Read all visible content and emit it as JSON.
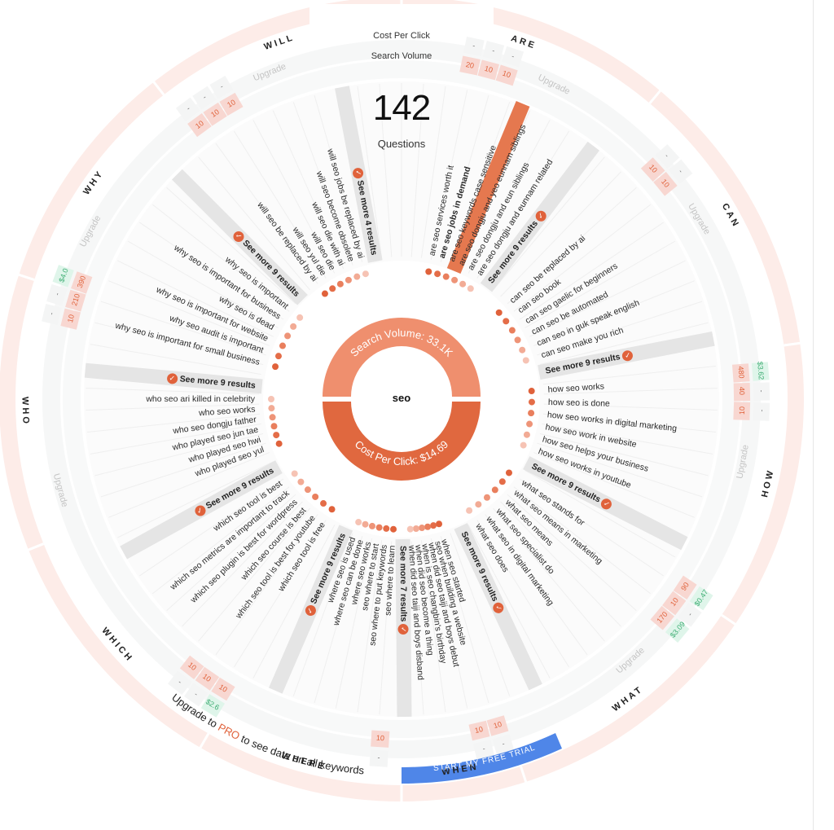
{
  "header": {
    "cost_per_click_label": "Cost Per Click",
    "search_volume_label": "Search Volume",
    "question_count": "142",
    "question_label": "Questions"
  },
  "center": {
    "keyword": "seo",
    "search_volume_label": "Search Volume: 33.1K",
    "cost_per_click_label": "Cost Per Click: $14.69",
    "colors": {
      "search_volume": "#ef8f6e",
      "cost_per_click": "#e0683f"
    }
  },
  "colors": {
    "accent": "#e0623b",
    "outer_ring": "#fdece8",
    "see_more_band": "#e5e5e5",
    "volume_cell": "#f8d7d1",
    "volume_text": "#e0623b",
    "cpc_cell": "#dff5ea",
    "cpc_text": "#3fae74",
    "cta": "#4f86e8",
    "highlight_bar": "#e5784f"
  },
  "categories": [
    {
      "name": "ARE",
      "questions": [
        "are seo services worth it",
        "are seo jobs in demand",
        "are seo keywords case sensitive",
        "are seo dongju and yeo eunnam siblings",
        "are seo dongju and eun siblings",
        "are seo dongju and eunnam related"
      ],
      "highlighted": "are seo jobs in demand",
      "see_more": "See more 9 results",
      "volumes": [
        "20",
        "10",
        "10"
      ],
      "cpcs": [
        "-",
        "-",
        "-"
      ],
      "upgrade_label": "Upgrade"
    },
    {
      "name": "CAN",
      "questions": [
        "can seo be replaced by ai",
        "can seo book",
        "can seo gaelic for beginners",
        "can seo be automated",
        "can seo in guk speak english",
        "can seo make you rich"
      ],
      "see_more": "See more 9 results",
      "volumes": [
        "10",
        "10"
      ],
      "cpcs": [
        "-",
        "-"
      ],
      "upgrade_label": "Upgrade"
    },
    {
      "name": "HOW",
      "questions": [
        "how seo works",
        "how seo is done",
        "how seo works in digital marketing",
        "how seo work in website",
        "how seo helps your business",
        "how seo works in youtube"
      ],
      "see_more": "See more 9 results",
      "volumes": [
        "480",
        "40",
        "10"
      ],
      "cpcs": [
        "$3.62",
        "-",
        "-"
      ],
      "upgrade_label": "Upgrade"
    },
    {
      "name": "WHAT",
      "questions": [
        "what seo stands for",
        "what seo means in marketing",
        "what seo means",
        "what seo specialist do",
        "what seo in digital marketing",
        "what seo does"
      ],
      "see_more": "See more 9 results",
      "volumes": [
        "90",
        "10",
        "170"
      ],
      "cpcs": [
        "$0.47",
        "-",
        "$3.09"
      ],
      "upgrade_label": "Upgrade"
    },
    {
      "name": "WHEN",
      "questions": [
        "when seo started",
        "seo when building a website",
        "when did seo taiji and boys debut",
        "when is seo changbin's birthday",
        "when did seo become a thing",
        "when did seo taiji and boys disband"
      ],
      "see_more": "See more 7 results",
      "volumes": [
        "10",
        "10"
      ],
      "cpcs": [
        "-",
        "-"
      ]
    },
    {
      "name": "WHERE",
      "questions": [
        "seo where to learn",
        "seo where to put keywords",
        "seo where to start",
        "where seo works",
        "where seo can be done",
        "where seo is used"
      ],
      "see_more": "See more 9 results",
      "volumes": [
        "10"
      ],
      "cpcs": [
        "-"
      ]
    },
    {
      "name": "WHICH",
      "questions": [
        "which seo tool is free",
        "which seo tool is best for youtube",
        "which seo course is best",
        "which seo plugin is best for wordpress",
        "which seo metrics are important to track",
        "which seo tool is best"
      ],
      "see_more": "See more 9 results",
      "volumes": [
        "10",
        "10",
        "10"
      ],
      "cpcs": [
        "$2.6",
        "-",
        "-"
      ]
    },
    {
      "name": "WHO",
      "questions": [
        "who played seo yul",
        "who played seo hwi",
        "who played seo jun tae",
        "who seo dongju father",
        "who seo works",
        "who seo ari killed in celebrity"
      ],
      "see_more": "See more 9 results",
      "upgrade_label": "Upgrade"
    },
    {
      "name": "WHY",
      "questions": [
        "why seo is important for small business",
        "why seo audit is important",
        "why seo is important for website",
        "why seo is dead",
        "why seo is important for business",
        "why seo is important"
      ],
      "see_more": "See more 9 results",
      "volumes": [
        "10",
        "210",
        "390"
      ],
      "cpcs": [
        "-",
        "-",
        "$4.0"
      ],
      "upgrade_label": "Upgrade"
    },
    {
      "name": "WILL",
      "questions": [
        "will seo be replaced by ai",
        "will seo yul die",
        "will seo die",
        "will seo die with ai",
        "will seo become obsolete",
        "will seo jobs be replaced by ai"
      ],
      "see_more": "See more 4 results",
      "see_more_secondary": "See more 8 results",
      "volumes": [
        "10",
        "10",
        "10"
      ],
      "cpcs": [
        "-",
        "-",
        "-"
      ],
      "upgrade_label": "Upgrade"
    }
  ],
  "promo": {
    "prefix": "Upgrade to ",
    "pro": "PRO",
    "suffix": " to see data on all keywords",
    "cta_label": "START MY FREE TRIAL"
  }
}
